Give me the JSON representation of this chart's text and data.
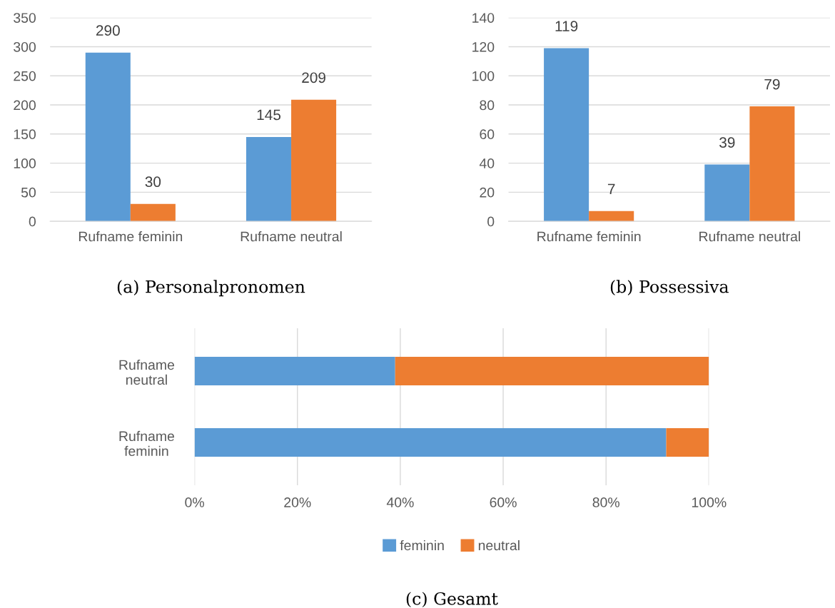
{
  "chart_data": [
    {
      "type": "bar",
      "title": "(a) Personalpronomen",
      "categories": [
        "Rufname feminin",
        "Rufname neutral"
      ],
      "series": [
        {
          "color": "#5b9bd5",
          "values": [
            290,
            145
          ]
        },
        {
          "color": "#ed7d31",
          "values": [
            30,
            209
          ]
        }
      ],
      "ylim": [
        0,
        350
      ],
      "yticks": [
        0,
        50,
        100,
        150,
        200,
        250,
        300,
        350
      ],
      "grid": "y",
      "data_labels": true
    },
    {
      "type": "bar",
      "title": "(b) Possessiva",
      "categories": [
        "Rufname feminin",
        "Rufname neutral"
      ],
      "series": [
        {
          "color": "#5b9bd5",
          "values": [
            119,
            39
          ]
        },
        {
          "color": "#ed7d31",
          "values": [
            7,
            79
          ]
        }
      ],
      "ylim": [
        0,
        140
      ],
      "yticks": [
        0,
        20,
        40,
        60,
        80,
        100,
        120,
        140
      ],
      "grid": "y",
      "data_labels": true
    },
    {
      "type": "bar",
      "title": "(c) Gesamt",
      "orientation": "horizontal",
      "stacked": true,
      "categories": [
        "Rufname neutral",
        "Rufname feminin"
      ],
      "series": [
        {
          "name": "feminin",
          "color": "#5b9bd5",
          "values": [
            39,
            91.7
          ]
        },
        {
          "name": "neutral",
          "color": "#ed7d31",
          "values": [
            61,
            8.3
          ]
        }
      ],
      "xlim": [
        0,
        100
      ],
      "xticks": [
        {
          "value": 0,
          "label": "0%"
        },
        {
          "value": 20,
          "label": "20%"
        },
        {
          "value": 40,
          "label": "40%"
        },
        {
          "value": 60,
          "label": "60%"
        },
        {
          "value": 80,
          "label": "80%"
        },
        {
          "value": 100,
          "label": "100%"
        }
      ],
      "grid": "x",
      "legend": "bottom"
    }
  ]
}
